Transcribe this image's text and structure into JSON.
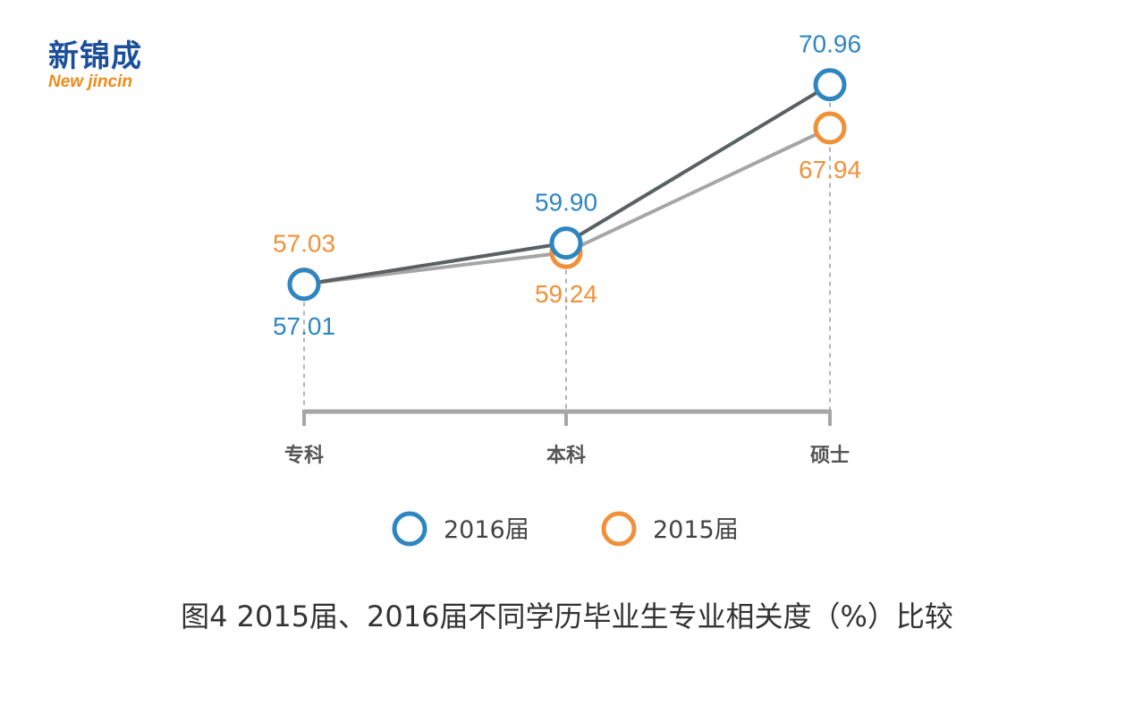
{
  "logo": {
    "text_cn": "新锦成",
    "text_en": "New jincin"
  },
  "caption": "图4  2015届、2016届不同学历毕业生专业相关度（%）比较",
  "chart_data": {
    "type": "line",
    "title": "",
    "categories": [
      "专科",
      "本科",
      "硕士"
    ],
    "series": [
      {
        "name": "2016届",
        "values": [
          57.01,
          59.9,
          70.96
        ],
        "labels": [
          "57.01",
          "59.90",
          "70.96"
        ],
        "marker_color": "#2e86c1",
        "line_color": "#5a6163"
      },
      {
        "name": "2015届",
        "values": [
          57.03,
          59.24,
          67.94
        ],
        "labels": [
          "57.03",
          "59.24",
          "67.94"
        ],
        "marker_color": "#f0913a",
        "line_color": "#a6a6a6"
      }
    ],
    "ylim": [
      50,
      75
    ],
    "grid": false,
    "legend": "bottom"
  }
}
